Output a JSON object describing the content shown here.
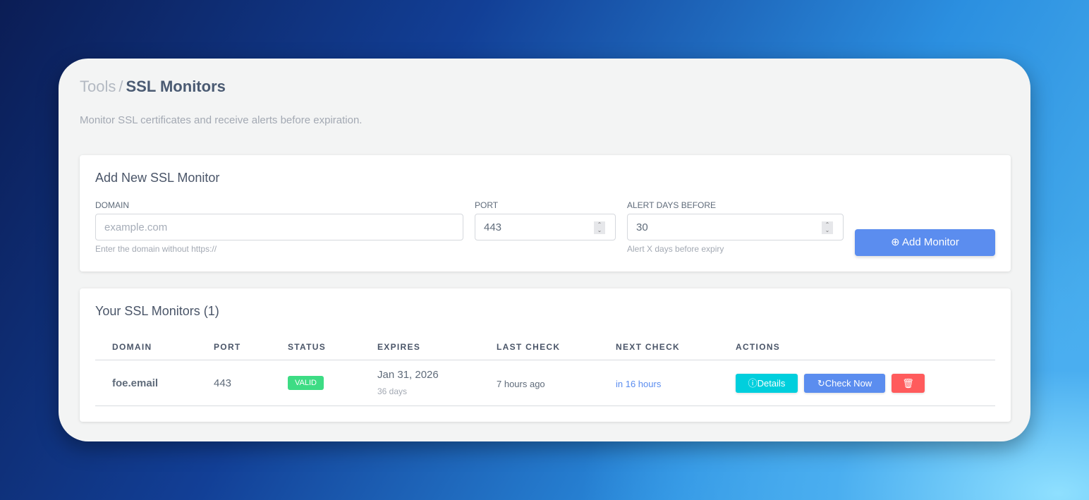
{
  "breadcrumb": {
    "parent": "Tools",
    "separator": "/",
    "current": "SSL Monitors"
  },
  "subtitle": "Monitor SSL certificates and receive alerts before expiration.",
  "add_form": {
    "title": "Add New SSL Monitor",
    "domain": {
      "label": "DOMAIN",
      "placeholder": "example.com",
      "value": "",
      "help": "Enter the domain without https://"
    },
    "port": {
      "label": "PORT",
      "value": "443"
    },
    "alert_days": {
      "label": "ALERT DAYS BEFORE",
      "value": "30",
      "help": "Alert X days before expiry"
    },
    "submit_label": "Add Monitor"
  },
  "monitors": {
    "title": "Your SSL Monitors (1)",
    "columns": [
      "DOMAIN",
      "PORT",
      "STATUS",
      "EXPIRES",
      "LAST CHECK",
      "NEXT CHECK",
      "ACTIONS"
    ],
    "rows": [
      {
        "domain": "foe.email",
        "port": "443",
        "status": "VALID",
        "expires": "Jan 31, 2026",
        "expires_in": "36 days",
        "last_check": "7 hours ago",
        "next_check": "in 16 hours",
        "details_label": "Details",
        "check_label": "Check Now"
      }
    ]
  },
  "colors": {
    "primary": "#5b8def",
    "info": "#00cfdd",
    "danger": "#ff5b5c",
    "success": "#3ddc84"
  }
}
